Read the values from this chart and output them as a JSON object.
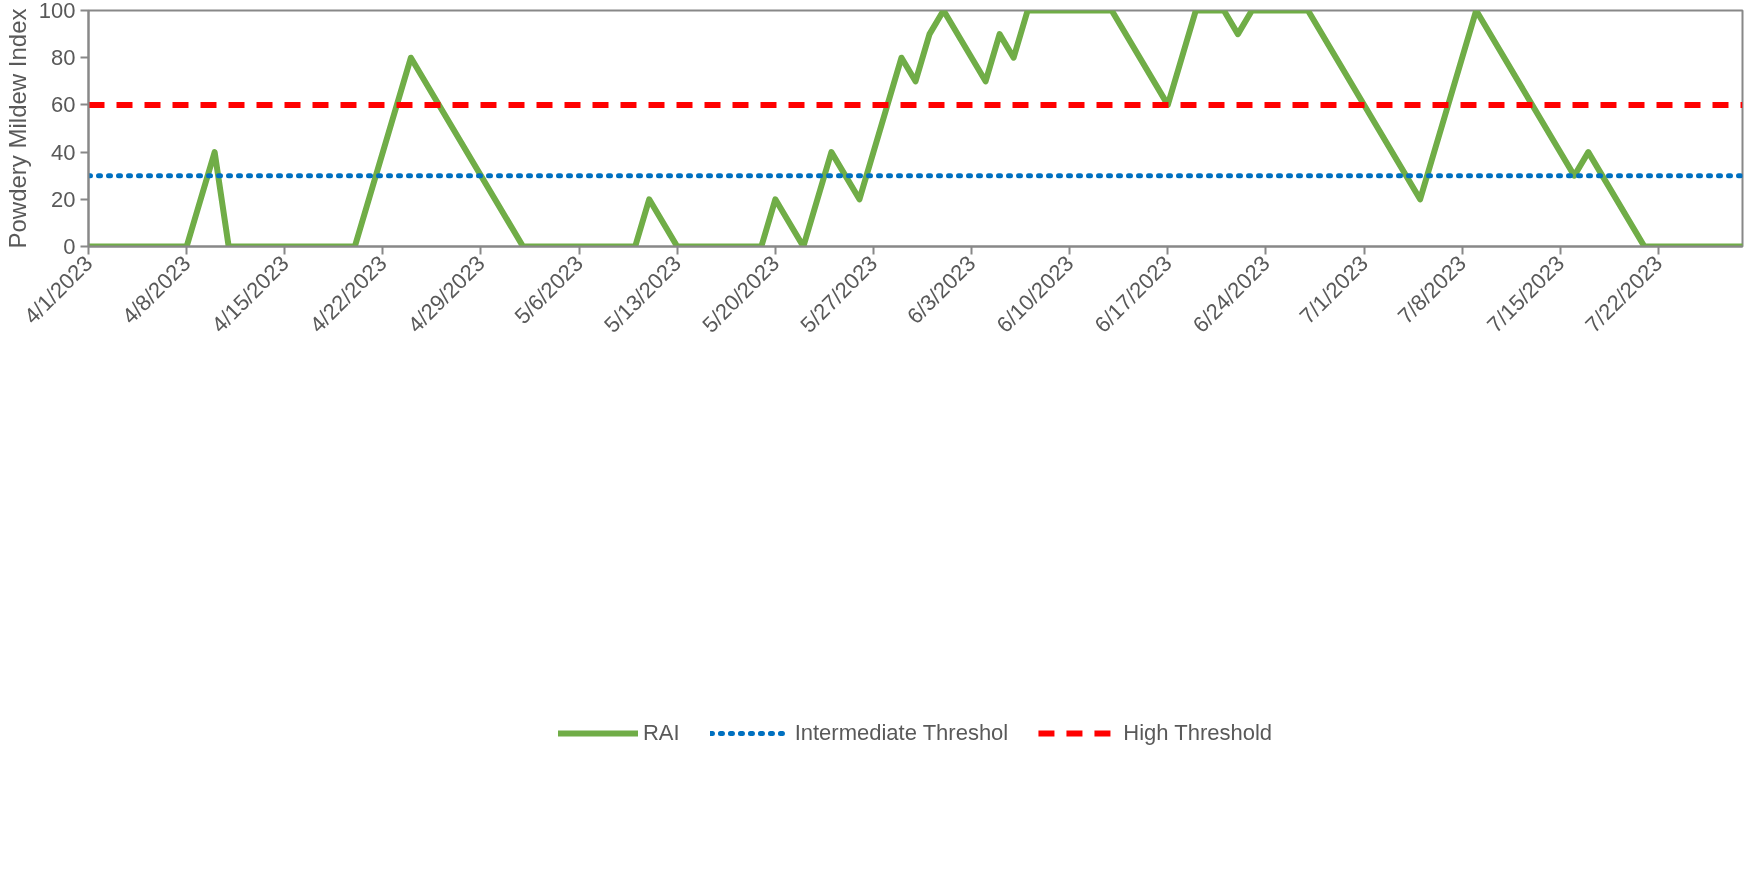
{
  "chart_data": {
    "type": "line",
    "ylabel": "Powdery Mildew Index",
    "xlim": [
      "2023-04-01",
      "2023-07-28"
    ],
    "ylim": [
      0,
      100
    ],
    "yticks": [
      0,
      20,
      40,
      60,
      80,
      100
    ],
    "xticks": [
      {
        "value": "2023-04-01",
        "label": "4/1/2023"
      },
      {
        "value": "2023-04-08",
        "label": "4/8/2023"
      },
      {
        "value": "2023-04-15",
        "label": "4/15/2023"
      },
      {
        "value": "2023-04-22",
        "label": "4/22/2023"
      },
      {
        "value": "2023-04-29",
        "label": "4/29/2023"
      },
      {
        "value": "2023-05-06",
        "label": "5/6/2023"
      },
      {
        "value": "2023-05-13",
        "label": "5/13/2023"
      },
      {
        "value": "2023-05-20",
        "label": "5/20/2023"
      },
      {
        "value": "2023-05-27",
        "label": "5/27/2023"
      },
      {
        "value": "2023-06-03",
        "label": "6/3/2023"
      },
      {
        "value": "2023-06-10",
        "label": "6/10/2023"
      },
      {
        "value": "2023-06-17",
        "label": "6/17/2023"
      },
      {
        "value": "2023-06-24",
        "label": "6/24/2023"
      },
      {
        "value": "2023-07-01",
        "label": "7/1/2023"
      },
      {
        "value": "2023-07-08",
        "label": "7/8/2023"
      },
      {
        "value": "2023-07-15",
        "label": "7/15/2023"
      },
      {
        "value": "2023-07-22",
        "label": "7/22/2023"
      }
    ],
    "grid": false,
    "legend": "bottom",
    "marker": "none",
    "series": [
      {
        "name": "RAI",
        "color": "#70ad47",
        "line_style": "solid",
        "x": [
          "2023-04-01",
          "2023-04-08",
          "2023-04-10",
          "2023-04-11",
          "2023-04-20",
          "2023-04-24",
          "2023-05-02",
          "2023-05-10",
          "2023-05-11",
          "2023-05-13",
          "2023-05-19",
          "2023-05-20",
          "2023-05-22",
          "2023-05-24",
          "2023-05-26",
          "2023-05-29",
          "2023-05-30",
          "2023-05-31",
          "2023-06-01",
          "2023-06-04",
          "2023-06-05",
          "2023-06-06",
          "2023-06-07",
          "2023-06-13",
          "2023-06-17",
          "2023-06-19",
          "2023-06-21",
          "2023-06-22",
          "2023-06-23",
          "2023-06-27",
          "2023-07-05",
          "2023-07-09",
          "2023-07-16",
          "2023-07-17",
          "2023-07-21",
          "2023-07-28"
        ],
        "values": [
          0,
          0,
          40,
          0,
          0,
          80,
          0,
          0,
          20,
          0,
          0,
          20,
          0,
          40,
          20,
          80,
          70,
          90,
          100,
          70,
          90,
          80,
          100,
          100,
          60,
          100,
          100,
          90,
          100,
          100,
          20,
          100,
          30,
          40,
          0,
          0
        ]
      },
      {
        "name": "Intermediate Threshol",
        "color": "#0070c0",
        "line_style": "dotted",
        "x": [
          "2023-04-01",
          "2023-07-28"
        ],
        "values": [
          30,
          30
        ]
      },
      {
        "name": "High Threshold",
        "color": "#ff0000",
        "line_style": "dashed",
        "x": [
          "2023-04-01",
          "2023-07-28"
        ],
        "values": [
          60,
          60
        ]
      }
    ]
  }
}
